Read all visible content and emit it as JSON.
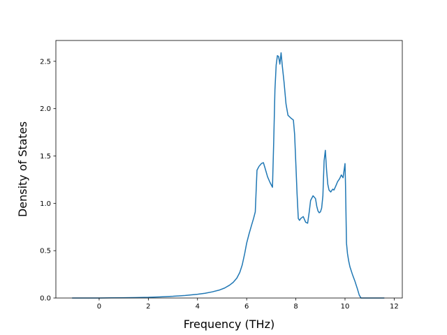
{
  "chart_data": {
    "type": "line",
    "title": "",
    "xlabel": "Frequency (THz)",
    "ylabel": "Density of States",
    "xlim": [
      -1.76,
      12.33
    ],
    "ylim": [
      0,
      2.72
    ],
    "x_ticks": [
      0,
      2,
      4,
      6,
      8,
      10,
      12
    ],
    "y_ticks": [
      0.0,
      0.5,
      1.0,
      1.5,
      2.0,
      2.5
    ],
    "x_tick_labels": [
      "0",
      "2",
      "4",
      "6",
      "8",
      "10",
      "12"
    ],
    "y_tick_labels": [
      "0.0",
      "0.5",
      "1.0",
      "1.5",
      "2.0",
      "2.5"
    ],
    "grid": false,
    "legend": false,
    "line_color": "#1f77b4",
    "series": [
      {
        "x": [
          -1.1,
          -0.5,
          0,
          0.5,
          1,
          1.5,
          2,
          2.5,
          3,
          3.5,
          4,
          4.3,
          4.6,
          4.9,
          5.1,
          5.3,
          5.45,
          5.6,
          5.72,
          5.82,
          5.92,
          6.0,
          6.1,
          6.2,
          6.28,
          6.35,
          6.42,
          6.5,
          6.6,
          6.68,
          6.75,
          6.85,
          6.95,
          7.05,
          7.1,
          7.15,
          7.2,
          7.25,
          7.3,
          7.35,
          7.4,
          7.45,
          7.52,
          7.6,
          7.68,
          7.8,
          7.9,
          7.95,
          8.0,
          8.05,
          8.1,
          8.15,
          8.2,
          8.3,
          8.4,
          8.48,
          8.55,
          8.6,
          8.7,
          8.8,
          8.85,
          8.9,
          8.95,
          9.0,
          9.05,
          9.1,
          9.15,
          9.2,
          9.25,
          9.3,
          9.35,
          9.42,
          9.5,
          9.55,
          9.62,
          9.7,
          9.78,
          9.85,
          9.92,
          10.0,
          10.02,
          10.06,
          10.1,
          10.15,
          10.2,
          10.3,
          10.4,
          10.5,
          10.58,
          10.65,
          11.0,
          11.6
        ],
        "y": [
          0.0,
          0.0,
          0.0,
          0.002,
          0.003,
          0.005,
          0.007,
          0.012,
          0.018,
          0.027,
          0.04,
          0.05,
          0.065,
          0.085,
          0.105,
          0.135,
          0.165,
          0.21,
          0.27,
          0.35,
          0.47,
          0.58,
          0.68,
          0.77,
          0.84,
          0.91,
          1.35,
          1.39,
          1.42,
          1.43,
          1.37,
          1.28,
          1.22,
          1.17,
          1.65,
          2.2,
          2.46,
          2.56,
          2.55,
          2.47,
          2.59,
          2.45,
          2.28,
          2.05,
          1.93,
          1.9,
          1.88,
          1.73,
          1.42,
          1.1,
          0.84,
          0.82,
          0.84,
          0.86,
          0.8,
          0.79,
          0.92,
          1.03,
          1.08,
          1.05,
          0.97,
          0.92,
          0.9,
          0.91,
          0.95,
          1.08,
          1.45,
          1.56,
          1.35,
          1.2,
          1.14,
          1.12,
          1.15,
          1.14,
          1.18,
          1.23,
          1.26,
          1.3,
          1.27,
          1.42,
          1.2,
          0.58,
          0.47,
          0.39,
          0.33,
          0.25,
          0.18,
          0.1,
          0.03,
          0.0,
          0.0,
          0.0
        ]
      }
    ]
  }
}
